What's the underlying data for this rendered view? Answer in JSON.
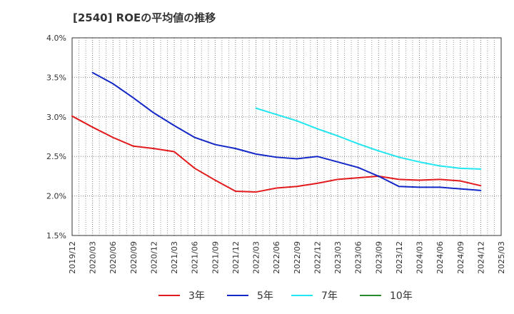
{
  "chart_data": {
    "type": "line",
    "title": "[2540]  ROEの平均値の推移",
    "xlabel": "",
    "ylabel": "",
    "ylim": [
      1.5,
      4.0
    ],
    "y_ticks": [
      "1.5%",
      "2.0%",
      "2.5%",
      "3.0%",
      "3.5%",
      "4.0%"
    ],
    "x": [
      "2019/12",
      "2020/03",
      "2020/06",
      "2020/09",
      "2020/12",
      "2021/03",
      "2021/06",
      "2021/09",
      "2021/12",
      "2022/03",
      "2022/06",
      "2022/09",
      "2022/12",
      "2023/03",
      "2023/06",
      "2023/09",
      "2023/12",
      "2024/03",
      "2024/06",
      "2024/09",
      "2024/12",
      "2025/03"
    ],
    "grid": true,
    "legend_position": "bottom",
    "series": [
      {
        "name": "3年",
        "color": "#e31a1c",
        "values": [
          3.01,
          2.87,
          2.74,
          2.63,
          2.6,
          2.56,
          2.35,
          2.2,
          2.06,
          2.05,
          2.1,
          2.12,
          2.16,
          2.21,
          2.23,
          2.25,
          2.21,
          2.2,
          2.21,
          2.19,
          2.13,
          null
        ]
      },
      {
        "name": "5年",
        "color": "#1428c8",
        "values": [
          null,
          3.56,
          3.42,
          3.24,
          3.05,
          2.89,
          2.74,
          2.65,
          2.6,
          2.53,
          2.49,
          2.47,
          2.5,
          2.43,
          2.36,
          2.25,
          2.12,
          2.11,
          2.11,
          2.09,
          2.07,
          null
        ]
      },
      {
        "name": "7年",
        "color": "#22e6f0",
        "values": [
          null,
          null,
          null,
          null,
          null,
          null,
          null,
          null,
          null,
          3.11,
          3.03,
          2.95,
          2.85,
          2.76,
          2.66,
          2.57,
          2.49,
          2.43,
          2.38,
          2.35,
          2.34,
          null
        ]
      },
      {
        "name": "10年",
        "color": "#2a8a2a",
        "values": [
          null,
          null,
          null,
          null,
          null,
          null,
          null,
          null,
          null,
          null,
          null,
          null,
          null,
          null,
          null,
          null,
          null,
          null,
          null,
          null,
          null,
          null
        ]
      }
    ]
  }
}
